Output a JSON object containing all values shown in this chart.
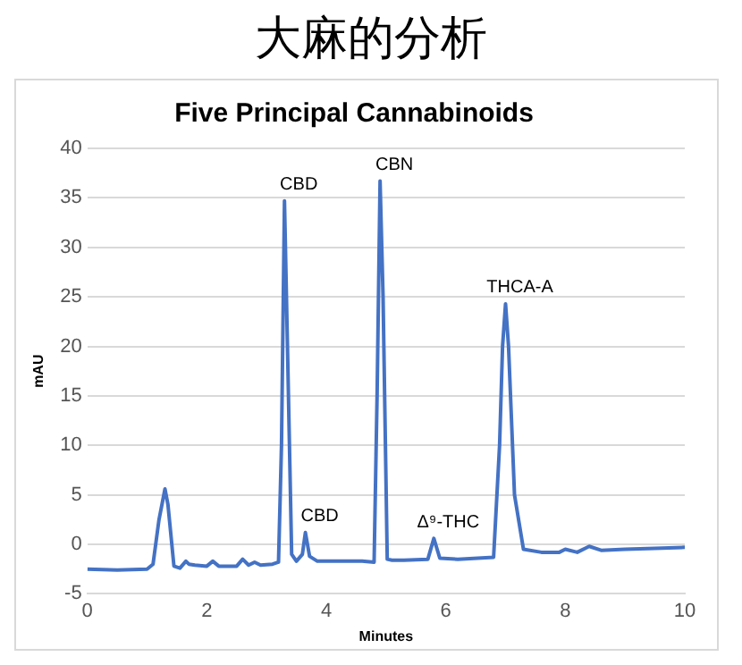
{
  "chart_data": {
    "type": "line",
    "title": "大麻的分析",
    "subtitle": "Five Principal Cannabinoids",
    "xlabel": "Minutes",
    "ylabel": "mAU",
    "x": [
      0,
      0.5,
      1.0,
      1.1,
      1.2,
      1.3,
      1.35,
      1.45,
      1.55,
      1.65,
      1.7,
      1.8,
      2.0,
      2.1,
      2.2,
      2.5,
      2.6,
      2.7,
      2.8,
      2.9,
      3.1,
      3.2,
      3.25,
      3.3,
      3.35,
      3.42,
      3.5,
      3.6,
      3.65,
      3.72,
      3.85,
      4.2,
      4.6,
      4.8,
      4.85,
      4.9,
      4.95,
      5.02,
      5.1,
      5.3,
      5.7,
      5.8,
      5.9,
      6.2,
      6.8,
      6.9,
      6.95,
      7.0,
      7.05,
      7.15,
      7.3,
      7.6,
      7.9,
      8.0,
      8.2,
      8.4,
      8.6,
      9.0,
      9.5,
      10
    ],
    "series": [
      {
        "color": "#4472c4",
        "values": [
          -2.5,
          -2.6,
          -2.5,
          -2.0,
          2.5,
          5.6,
          4.0,
          -2.2,
          -2.4,
          -1.7,
          -2.0,
          -2.1,
          -2.2,
          -1.7,
          -2.2,
          -2.2,
          -1.5,
          -2.1,
          -1.8,
          -2.1,
          -2.0,
          -1.8,
          10,
          34.7,
          20,
          -1.0,
          -1.7,
          -1.0,
          1.2,
          -1.2,
          -1.7,
          -1.7,
          -1.7,
          -1.8,
          15,
          36.7,
          25,
          -1.5,
          -1.6,
          -1.6,
          -1.5,
          0.6,
          -1.4,
          -1.5,
          -1.3,
          10,
          20,
          24.3,
          20,
          5,
          -0.5,
          -0.8,
          -0.8,
          -0.5,
          -0.8,
          -0.2,
          -0.6,
          -0.5,
          -0.4,
          -0.3
        ]
      }
    ],
    "xlim": [
      0,
      10
    ],
    "xticks": [
      0,
      2,
      4,
      6,
      8,
      10
    ],
    "ylim": [
      -5,
      40
    ],
    "yticks": [
      -5,
      0,
      5,
      10,
      15,
      20,
      25,
      30,
      35,
      40
    ],
    "grid": "y",
    "legend": false,
    "marker": "none",
    "line_style": "solid",
    "annotations": [
      {
        "text": "CBD",
        "x": 3.3,
        "y": 34.7
      },
      {
        "text": "CBD",
        "x": 3.65,
        "y": 1.2
      },
      {
        "text": "CBN",
        "x": 4.9,
        "y": 36.7
      },
      {
        "text": "Δ⁹-THC",
        "x": 5.8,
        "y": 0.6
      },
      {
        "text": "THCA-A",
        "x": 7.0,
        "y": 24.3
      }
    ]
  }
}
